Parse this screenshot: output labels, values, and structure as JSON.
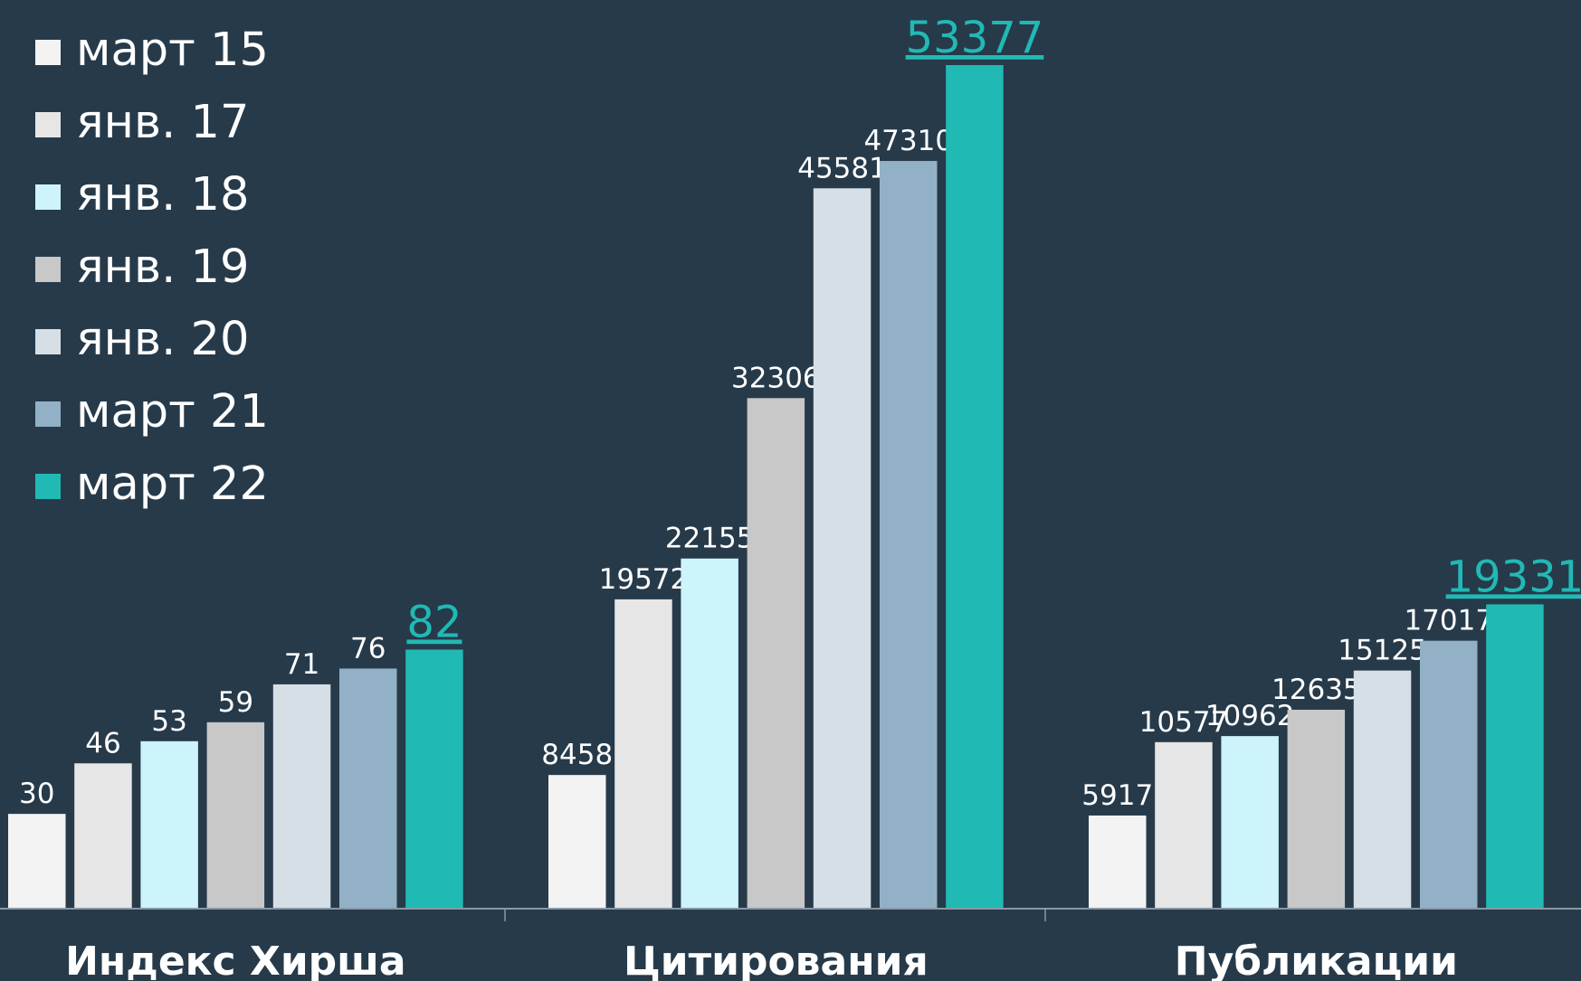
{
  "chart_data": {
    "type": "bar",
    "categories": [
      "Индекс Хирша",
      "Цитирования",
      "Публикации"
    ],
    "series": [
      {
        "name": "март 15",
        "color": "#f3f3f3",
        "values": [
          30,
          8458,
          5917
        ]
      },
      {
        "name": "янв. 17",
        "color": "#e6e6e6",
        "values": [
          46,
          19572,
          10577
        ]
      },
      {
        "name": "янв. 18",
        "color": "#cdf3fb",
        "values": [
          53,
          22155,
          10962
        ]
      },
      {
        "name": "янв. 19",
        "color": "#c8c8c8",
        "values": [
          59,
          32306,
          12635
        ]
      },
      {
        "name": "янв. 20",
        "color": "#d6dee6",
        "values": [
          71,
          45581,
          15125
        ]
      },
      {
        "name": "март 21",
        "color": "#93b1c6",
        "values": [
          76,
          47310,
          17017
        ]
      },
      {
        "name": "март 22",
        "color": "#21b9b4",
        "values": [
          82,
          53377,
          19331
        ]
      }
    ],
    "ylim": [
      [
        0,
        267
      ],
      [
        0,
        53377
      ],
      [
        0,
        53580
      ]
    ],
    "legend": "upper left"
  }
}
